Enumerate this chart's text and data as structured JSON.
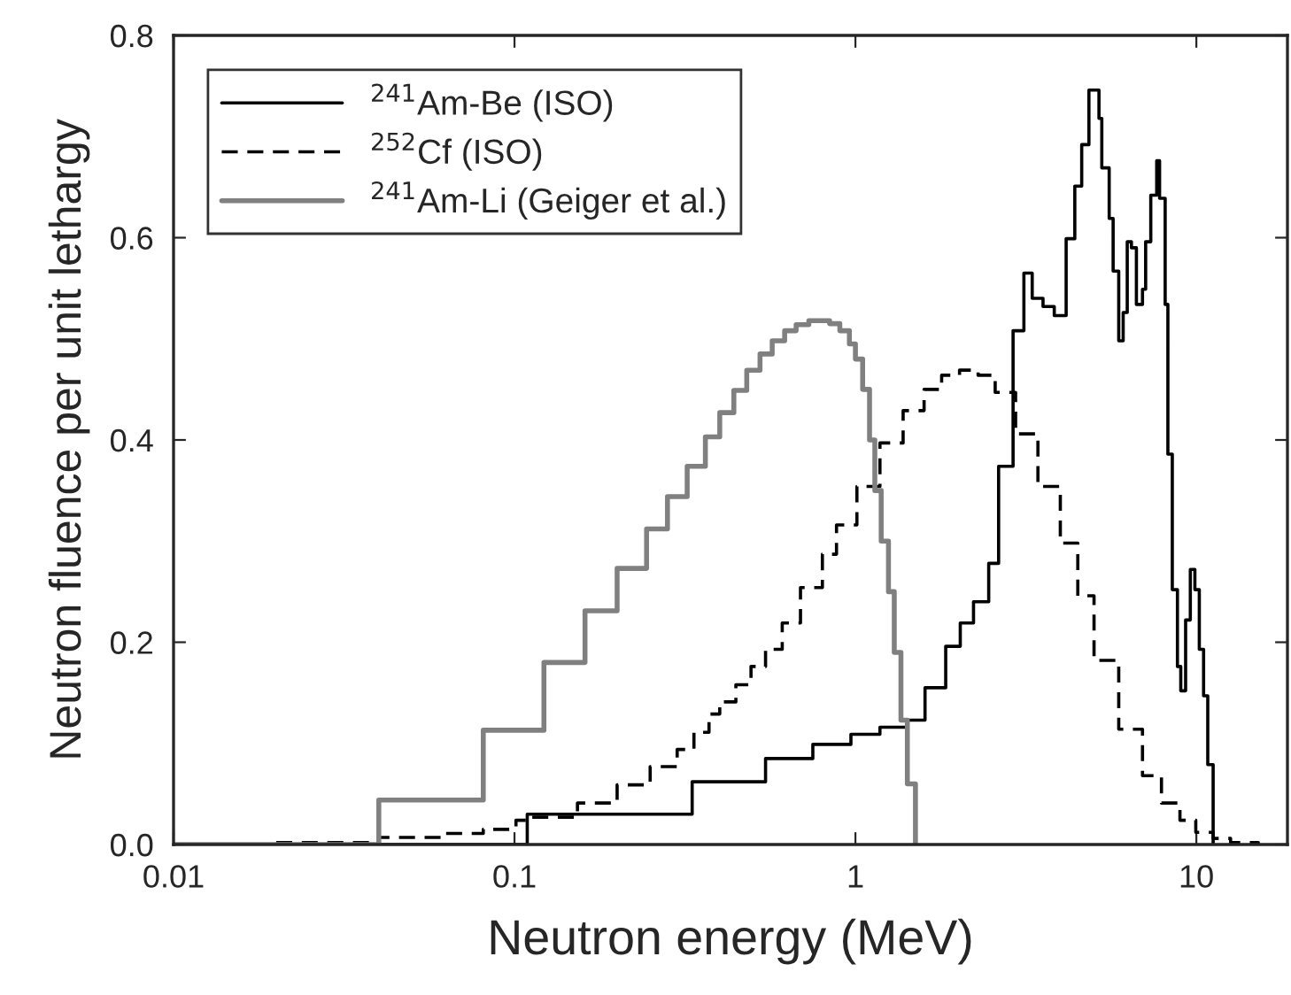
{
  "chart_data": {
    "type": "step",
    "xlabel": "Neutron energy (MeV)",
    "ylabel": "Neutron fluence per unit lethargy",
    "log": "x",
    "xlim": [
      0.01,
      18.5
    ],
    "ylim": [
      0,
      0.8
    ],
    "xticks": [
      0.01,
      0.1,
      1,
      10
    ],
    "yticks": [
      {
        "value": 0,
        "label": "0.0"
      },
      0.2,
      0.4,
      0.6,
      0.8
    ],
    "grid": false,
    "legend": "top left",
    "series": [
      {
        "name": "$^{241}$Am-Be (ISO)",
        "color": "#000000",
        "line_style": "solid",
        "x": [
          0.01,
          0.109,
          0.332,
          0.545,
          0.75,
          0.97,
          1.18,
          1.42,
          1.6,
          1.84,
          2.03,
          2.22,
          2.46,
          2.63,
          2.9,
          3.12,
          3.3,
          3.55,
          3.83,
          4.15,
          4.4,
          4.61,
          4.84,
          5.18,
          5.28,
          5.55,
          5.7,
          5.92,
          6.1,
          6.27,
          6.45,
          6.67,
          6.95,
          7.1,
          7.35,
          7.65,
          7.8,
          8.1,
          8.25,
          8.5,
          8.8,
          9.0,
          9.3,
          9.6,
          9.9,
          10.2,
          10.5,
          10.8,
          11.2
        ],
        "values": [
          0,
          0.03,
          0.062,
          0.085,
          0.099,
          0.109,
          0.116,
          0.123,
          0.155,
          0.196,
          0.219,
          0.24,
          0.278,
          0.374,
          0.508,
          0.565,
          0.54,
          0.532,
          0.523,
          0.599,
          0.651,
          0.692,
          0.746,
          0.718,
          0.669,
          0.619,
          0.567,
          0.498,
          0.526,
          0.596,
          0.59,
          0.534,
          0.549,
          0.596,
          0.642,
          0.676,
          0.639,
          0.534,
          0.386,
          0.252,
          0.176,
          0.152,
          0.222,
          0.272,
          0.252,
          0.193,
          0.147,
          0.079,
          0
        ]
      },
      {
        "name": "$^{252}$Cf (ISO)",
        "color": "#000000",
        "line_style": "dashed",
        "x": [
          0.02,
          0.04,
          0.061,
          0.081,
          0.101,
          0.11,
          0.153,
          0.2,
          0.25,
          0.3,
          0.336,
          0.372,
          0.4,
          0.446,
          0.494,
          0.545,
          0.61,
          0.69,
          0.8,
          0.88,
          1.01,
          1.18,
          1.38,
          1.59,
          1.79,
          2.02,
          2.29,
          2.57,
          2.95,
          3.43,
          3.99,
          4.49,
          5.01,
          5.92,
          6.95,
          7.9,
          8.95,
          9.96,
          11.2,
          12.6,
          15.2
        ],
        "values": [
          0.002,
          0.007,
          0.011,
          0.015,
          0.024,
          0.027,
          0.041,
          0.059,
          0.077,
          0.094,
          0.111,
          0.129,
          0.141,
          0.158,
          0.176,
          0.193,
          0.219,
          0.254,
          0.287,
          0.316,
          0.354,
          0.397,
          0.429,
          0.45,
          0.464,
          0.469,
          0.464,
          0.447,
          0.406,
          0.354,
          0.298,
          0.246,
          0.182,
          0.114,
          0.068,
          0.041,
          0.024,
          0.012,
          0.006,
          0.002,
          0
        ]
      },
      {
        "name": "$^{241}$Am-Li (Geiger et al.)",
        "color": "#808080",
        "line_style": "solid",
        "x": [
          0.01,
          0.04,
          0.081,
          0.122,
          0.161,
          0.2,
          0.244,
          0.281,
          0.321,
          0.363,
          0.4,
          0.44,
          0.48,
          0.525,
          0.57,
          0.62,
          0.67,
          0.73,
          0.84,
          0.9,
          0.96,
          1.0,
          1.05,
          1.1,
          1.14,
          1.19,
          1.25,
          1.3,
          1.36,
          1.42,
          1.5
        ],
        "values": [
          0,
          0.044,
          0.113,
          0.18,
          0.231,
          0.273,
          0.312,
          0.344,
          0.374,
          0.403,
          0.427,
          0.449,
          0.469,
          0.485,
          0.498,
          0.508,
          0.514,
          0.518,
          0.515,
          0.508,
          0.495,
          0.48,
          0.45,
          0.4,
          0.35,
          0.3,
          0.25,
          0.19,
          0.123,
          0.06,
          0
        ]
      }
    ]
  }
}
